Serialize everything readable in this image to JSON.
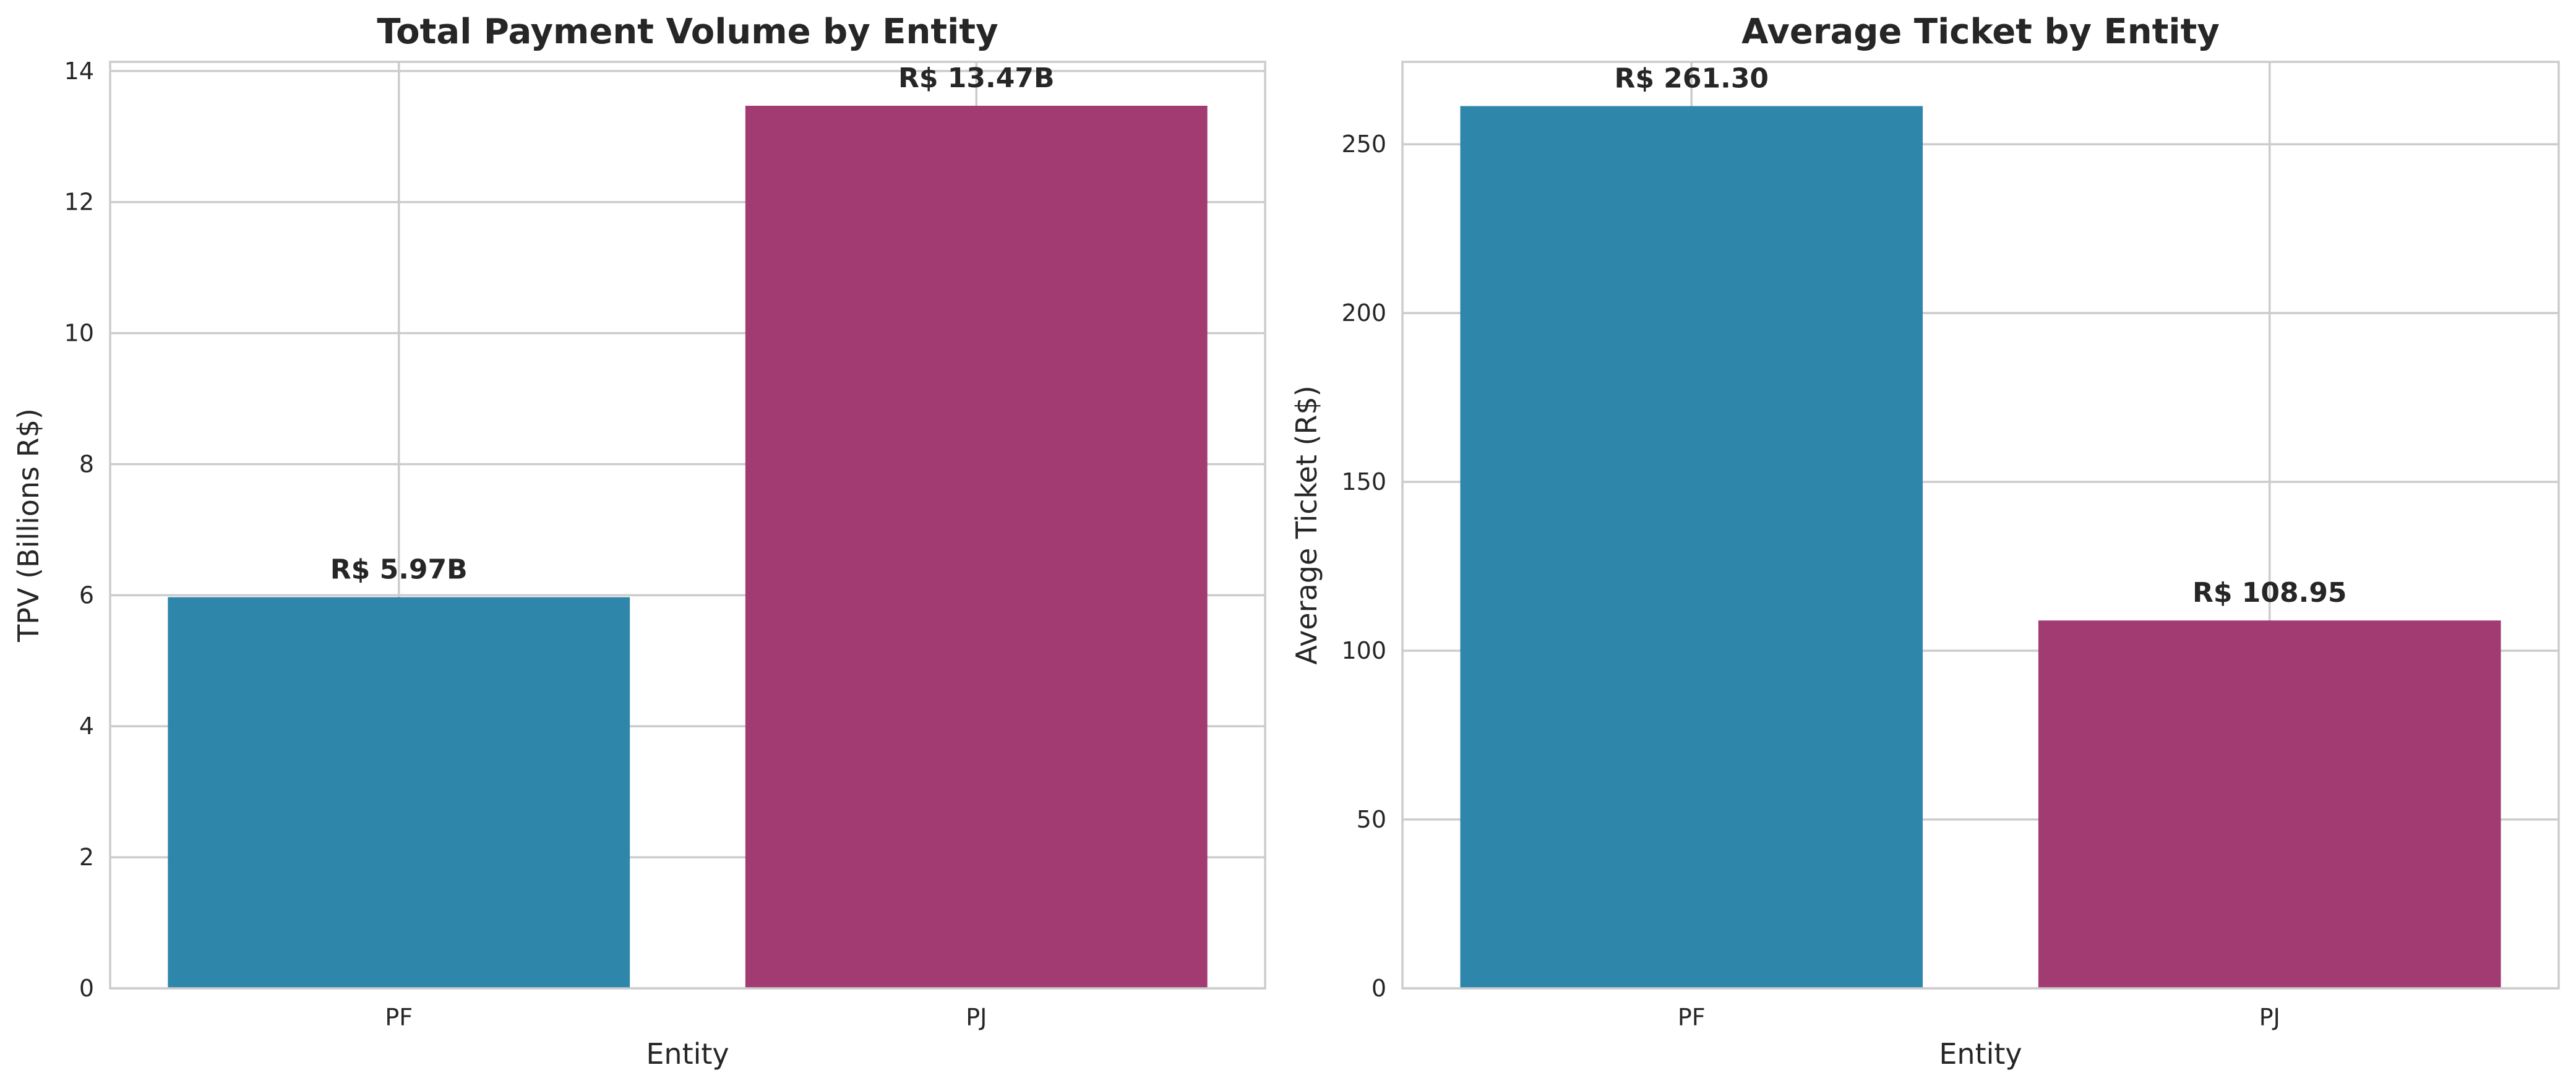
{
  "chart_data": [
    {
      "type": "bar",
      "title": "Total Payment Volume by Entity",
      "xlabel": "Entity",
      "ylabel": "TPV (Billions R$)",
      "categories": [
        "PF",
        "PJ"
      ],
      "values": [
        5.97,
        13.47
      ],
      "data_labels": [
        "R$ 5.97B",
        "R$ 13.47B"
      ],
      "colors": [
        "#2e86ab",
        "#a23b72"
      ],
      "ylim": [
        0,
        14.14
      ],
      "yticks": [
        0,
        2,
        4,
        6,
        8,
        10,
        12,
        14
      ],
      "grid": true
    },
    {
      "type": "bar",
      "title": "Average Ticket by Entity",
      "xlabel": "Entity",
      "ylabel": "Average Ticket (R$)",
      "categories": [
        "PF",
        "PJ"
      ],
      "values": [
        261.3,
        108.95
      ],
      "data_labels": [
        "R$ 261.30",
        "R$ 108.95"
      ],
      "colors": [
        "#2e86ab",
        "#a23b72"
      ],
      "ylim": [
        0,
        274.4
      ],
      "yticks": [
        0,
        50,
        100,
        150,
        200,
        250
      ],
      "grid": true
    }
  ]
}
